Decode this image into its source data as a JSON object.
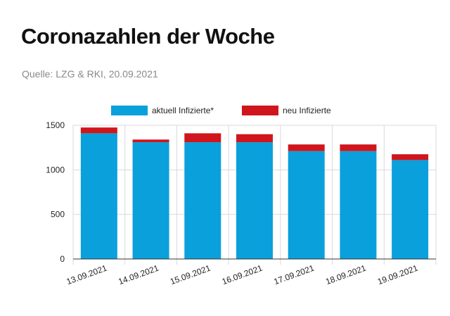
{
  "header": {
    "title": "Coronazahlen der Woche",
    "source": "Quelle: LZG & RKI, 20.09.2021"
  },
  "colors": {
    "aktuell": "#0aa0dc",
    "neu": "#d0161c"
  },
  "chart_data": {
    "type": "bar",
    "stacked": true,
    "categories": [
      "13.09.2021",
      "14.09.2021",
      "15.09.2021",
      "16.09.2021",
      "17.09.2021",
      "18.09.2021",
      "19.09.2021"
    ],
    "series": [
      {
        "name": "aktuell Infizierte*",
        "values": [
          1410,
          1310,
          1310,
          1310,
          1210,
          1210,
          1110
        ]
      },
      {
        "name": "neu Infizierte",
        "values": [
          65,
          30,
          100,
          90,
          75,
          75,
          65
        ]
      }
    ],
    "ylim": [
      0,
      1500
    ],
    "yticks": [
      "0",
      "500",
      "1000",
      "1500"
    ],
    "grid": true,
    "legend_position": "top"
  }
}
